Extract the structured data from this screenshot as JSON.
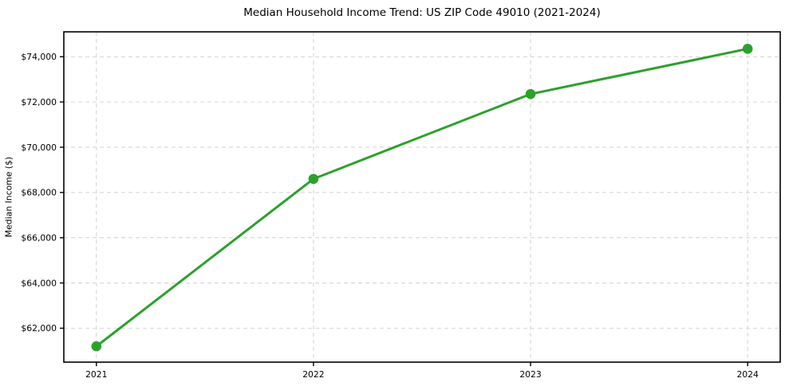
{
  "chart_data": {
    "type": "line",
    "title": "Median Household Income Trend: US ZIP Code 49010 (2021-2024)",
    "xlabel": "",
    "ylabel": "Median Income ($)",
    "categories": [
      "2021",
      "2022",
      "2023",
      "2024"
    ],
    "series": [
      {
        "name": "Median Household Income",
        "values": [
          61200,
          68600,
          72350,
          74350
        ]
      }
    ],
    "yticks": [
      62000,
      64000,
      66000,
      68000,
      70000,
      72000,
      74000
    ],
    "ytick_labels": [
      "$62,000",
      "$64,000",
      "$66,000",
      "$68,000",
      "$70,000",
      "$72,000",
      "$74,000"
    ],
    "ylim": [
      60500,
      75100
    ],
    "grid": true,
    "grid_style": "dashed",
    "legend_position": "none",
    "colors": {
      "line": "#2ca02c",
      "marker": "#2ca02c",
      "grid": "#d6d6d6",
      "spine": "#000000",
      "background": "#ffffff",
      "text": "#000000"
    }
  }
}
